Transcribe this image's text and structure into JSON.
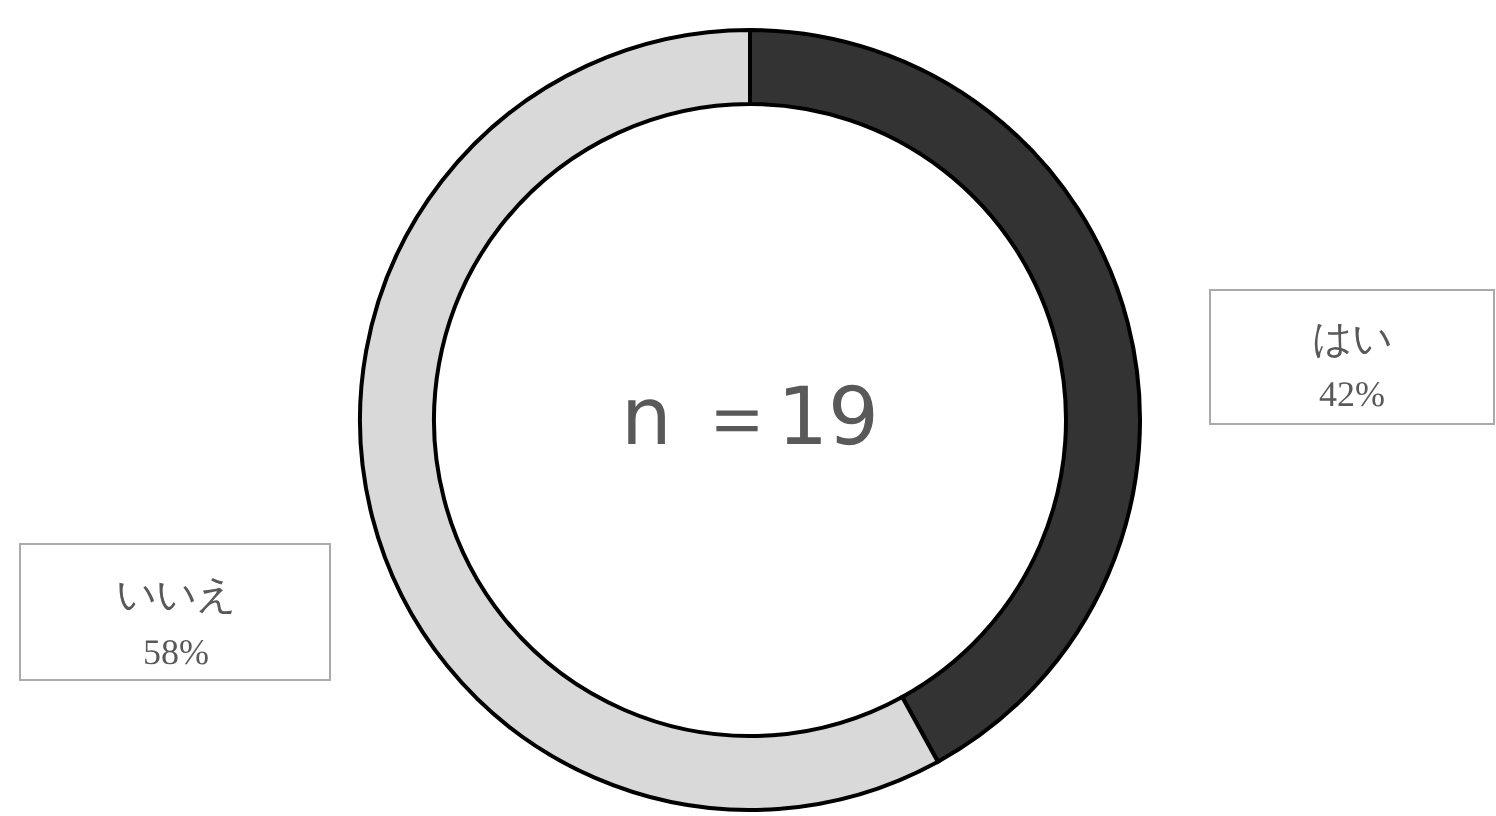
{
  "chart_data": {
    "type": "donut",
    "categories": [
      "はい",
      "いいえ"
    ],
    "values": [
      42,
      58
    ],
    "colors": [
      "#333333",
      "#d9d9d9"
    ],
    "value_labels": [
      "42%",
      "58%"
    ],
    "annotations": [
      "n ＝19"
    ]
  }
}
